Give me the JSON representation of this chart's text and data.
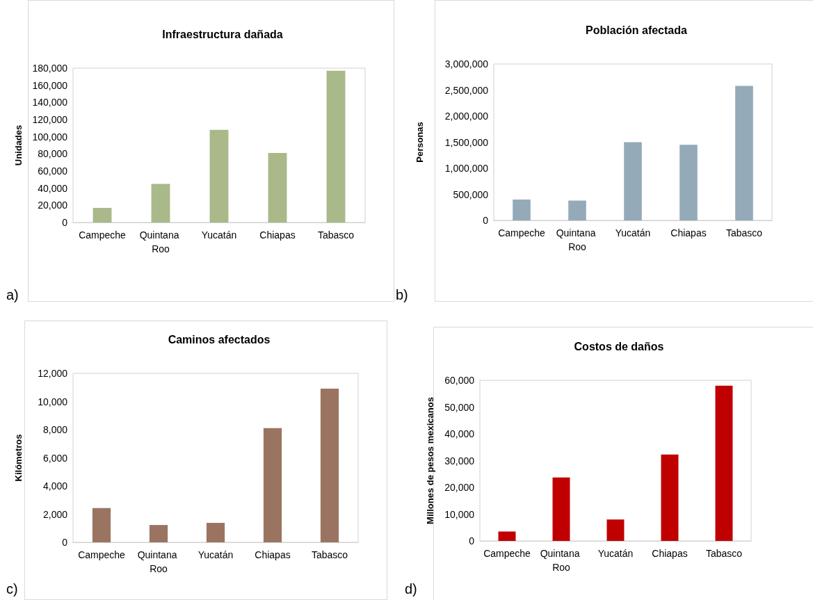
{
  "chart_data": [
    {
      "type": "bar",
      "title": "Infraestructura dañada",
      "ylabel": "Unidades",
      "categories": [
        "Campeche",
        "Quintana Roo",
        "Yucatán",
        "Chiapas",
        "Tabasco"
      ],
      "values": [
        17000,
        45000,
        108000,
        81000,
        177000
      ],
      "color": "#a9b98a",
      "ylim": [
        0,
        180000
      ],
      "yticks": [
        {
          "value": 0,
          "label": "0"
        },
        {
          "value": 20000,
          "label": "20,000"
        },
        {
          "value": 40000,
          "label": "40,000"
        },
        {
          "value": 60000,
          "label": "60,000"
        },
        {
          "value": 80000,
          "label": "80,000"
        },
        {
          "value": 100000,
          "label": "100,000"
        },
        {
          "value": 120000,
          "label": "120,000"
        },
        {
          "value": 140000,
          "label": "140,000"
        },
        {
          "value": 160000,
          "label": "160,000"
        },
        {
          "value": 180000,
          "label": "180,000"
        }
      ],
      "annotations": [
        "a)"
      ]
    },
    {
      "type": "bar",
      "title": "Población afectada",
      "ylabel": "Personas",
      "categories": [
        "Campeche",
        "Quintana Roo",
        "Yucatán",
        "Chiapas",
        "Tabasco"
      ],
      "values": [
        400000,
        380000,
        1500000,
        1450000,
        2580000
      ],
      "color": "#94aab9",
      "ylim": [
        0,
        3000000
      ],
      "yticks": [
        {
          "value": 0,
          "label": "0"
        },
        {
          "value": 500000,
          "label": "500,000"
        },
        {
          "value": 1000000,
          "label": "1,000,000"
        },
        {
          "value": 1500000,
          "label": "1,500,000"
        },
        {
          "value": 2000000,
          "label": "2,000,000"
        },
        {
          "value": 2500000,
          "label": "2,500,000"
        },
        {
          "value": 3000000,
          "label": "3,000,000"
        }
      ],
      "annotations": [
        "b)"
      ]
    },
    {
      "type": "bar",
      "title": "Caminos afectados",
      "ylabel": "Kilómetros",
      "categories": [
        "Campeche",
        "Quintana Roo",
        "Yucatán",
        "Chiapas",
        "Tabasco"
      ],
      "values": [
        2430,
        1230,
        1380,
        8110,
        10910
      ],
      "color": "#9b7461",
      "ylim": [
        0,
        12000
      ],
      "yticks": [
        {
          "value": 0,
          "label": "0"
        },
        {
          "value": 2000,
          "label": "2,000"
        },
        {
          "value": 4000,
          "label": "4,000"
        },
        {
          "value": 6000,
          "label": "6,000"
        },
        {
          "value": 8000,
          "label": "8,000"
        },
        {
          "value": 10000,
          "label": "10,000"
        },
        {
          "value": 12000,
          "label": "12,000"
        }
      ],
      "annotations": [
        "c)"
      ]
    },
    {
      "type": "bar",
      "title": "Costos de daños",
      "ylabel": "Millones de pesos mexicanos",
      "categories": [
        "Campeche",
        "Quintana Roo",
        "Yucatán",
        "Chiapas",
        "Tabasco"
      ],
      "values": [
        3500,
        23700,
        8000,
        32300,
        58000
      ],
      "color": "#c00000",
      "ylim": [
        0,
        60000
      ],
      "yticks": [
        {
          "value": 0,
          "label": "0"
        },
        {
          "value": 10000,
          "label": "10,000"
        },
        {
          "value": 20000,
          "label": "20,000"
        },
        {
          "value": 30000,
          "label": "30,000"
        },
        {
          "value": 40000,
          "label": "40,000"
        },
        {
          "value": 50000,
          "label": "50,000"
        },
        {
          "value": 60000,
          "label": "60,000"
        }
      ],
      "annotations": [
        "d)"
      ]
    }
  ]
}
